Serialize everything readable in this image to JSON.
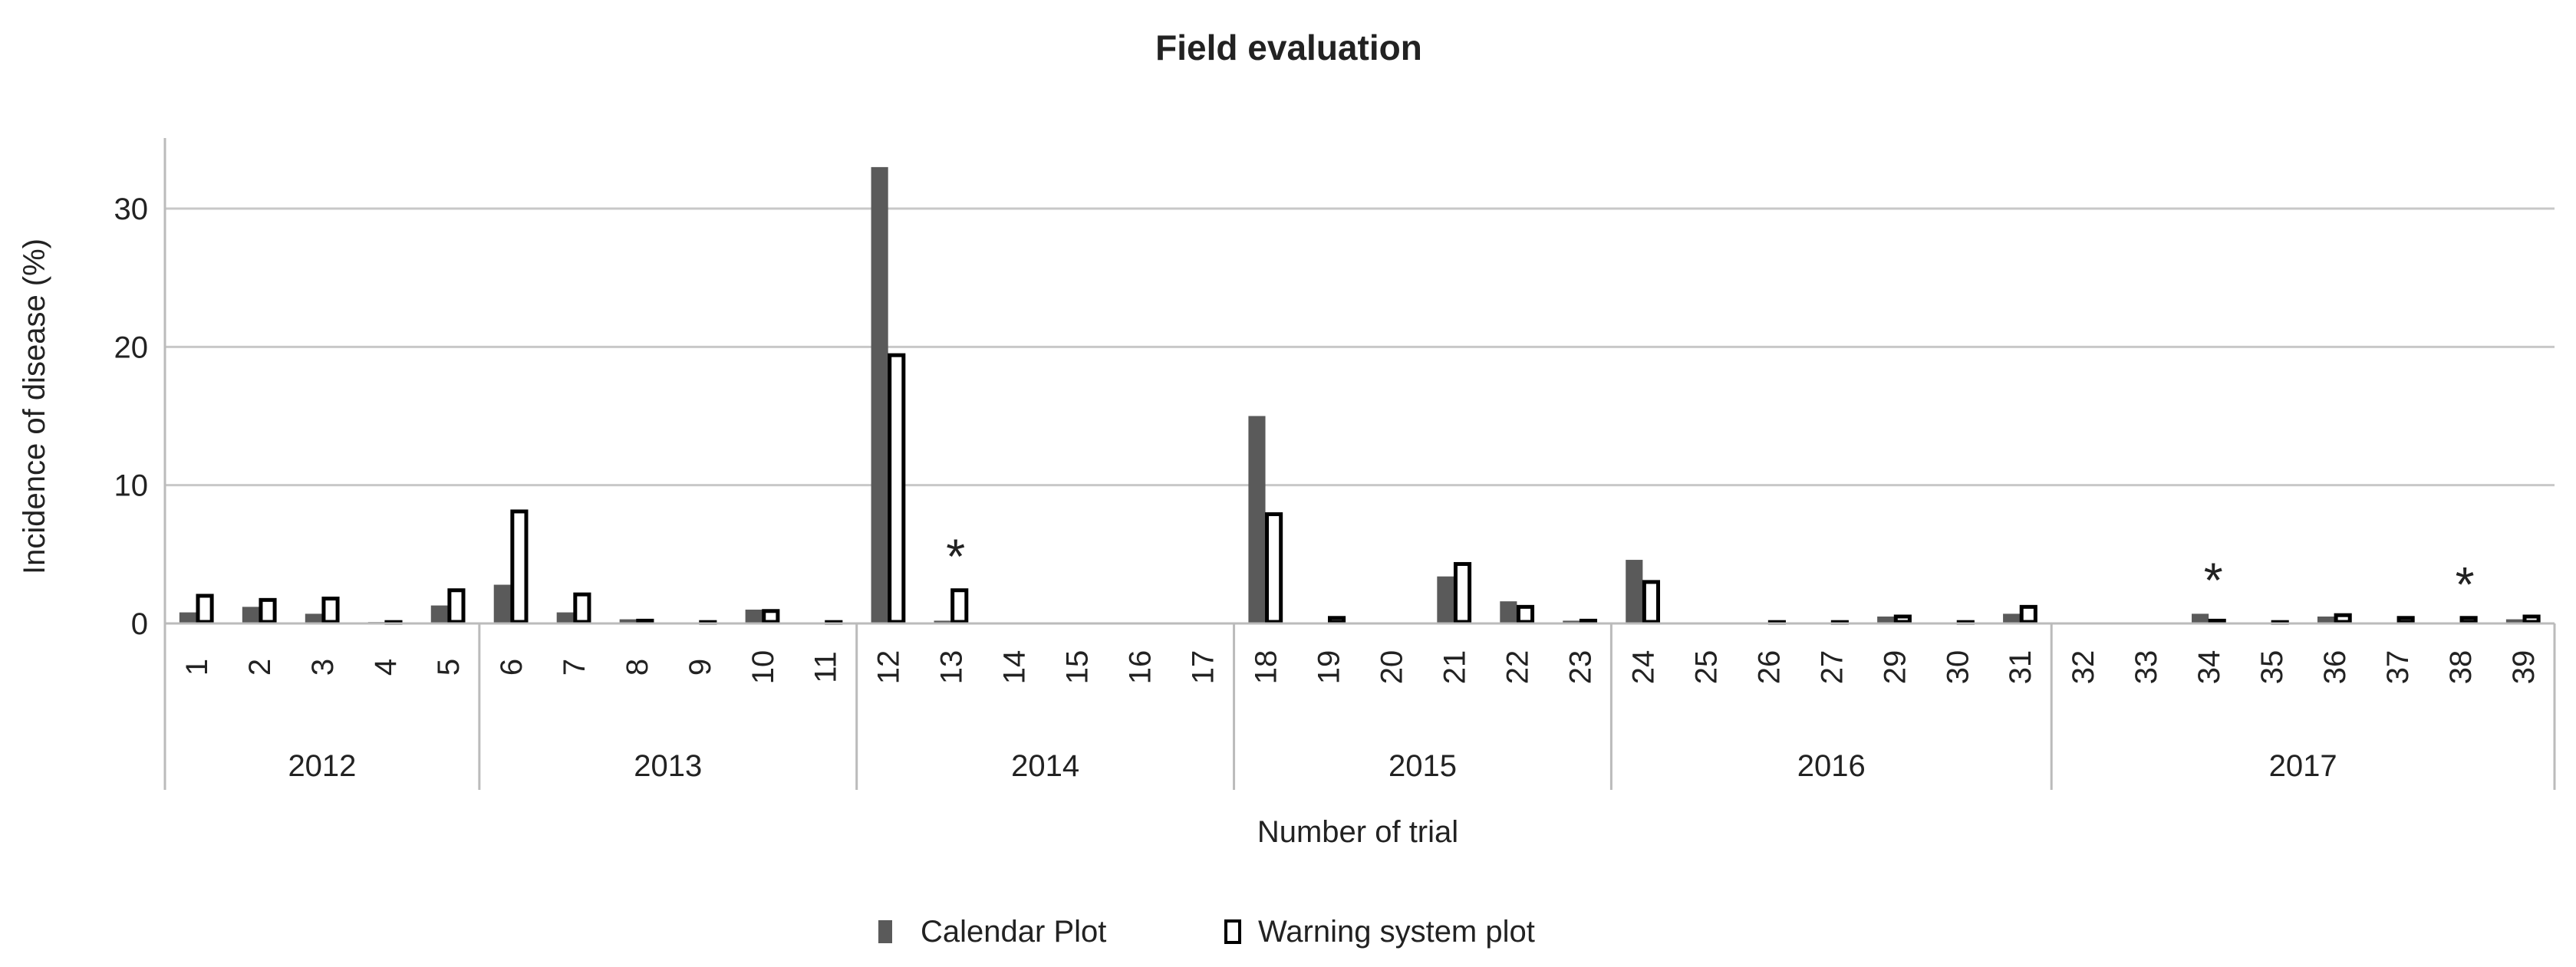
{
  "chart_data": {
    "type": "bar",
    "title": "Field evaluation",
    "xlabel": "Number of trial",
    "ylabel": "Incidence of disease (%)",
    "ylim": [
      0,
      35
    ],
    "yticks": [
      0,
      10,
      20,
      30
    ],
    "grid": true,
    "legend_placement": "bottom",
    "categories": [
      "1",
      "2",
      "3",
      "4",
      "5",
      "6",
      "7",
      "8",
      "9",
      "10",
      "11",
      "12",
      "13",
      "14",
      "15",
      "16",
      "17",
      "18",
      "19",
      "20",
      "21",
      "22",
      "23",
      "24",
      "25",
      "26",
      "27",
      "29",
      "30",
      "31",
      "32",
      "33",
      "34",
      "35",
      "36",
      "37",
      "38",
      "39"
    ],
    "groups": [
      {
        "label": "2012",
        "count": 5
      },
      {
        "label": "2013",
        "count": 6
      },
      {
        "label": "2014",
        "count": 6
      },
      {
        "label": "2015",
        "count": 6
      },
      {
        "label": "2016",
        "count": 7
      },
      {
        "label": "2017",
        "count": 8
      }
    ],
    "series": [
      {
        "name": "Calendar Plot",
        "color": "#5a5a5a",
        "values": [
          0.8,
          1.2,
          0.7,
          0.1,
          1.3,
          2.8,
          0.8,
          0.3,
          0,
          1.0,
          0,
          33,
          0.2,
          0,
          0,
          0,
          0,
          15,
          0,
          0,
          3.4,
          1.6,
          0.2,
          4.6,
          0,
          0,
          0,
          0.5,
          0,
          0.7,
          0,
          0,
          0.7,
          0,
          0.5,
          0,
          0,
          0.3
        ]
      },
      {
        "name": "Warning system plot",
        "color": "#ffffff",
        "values": [
          2.0,
          1.7,
          1.8,
          0.1,
          2.4,
          8.1,
          2.1,
          0.2,
          0.1,
          0.9,
          0.1,
          19.4,
          2.4,
          0,
          0,
          0,
          0,
          7.9,
          0.4,
          0,
          4.3,
          1.2,
          0.2,
          3.0,
          0,
          0.1,
          0.1,
          0.5,
          0.1,
          1.2,
          0,
          0,
          0.2,
          0.1,
          0.6,
          0.4,
          0.4,
          0.5
        ]
      }
    ],
    "annotations": [
      {
        "category": "13",
        "text": "*"
      },
      {
        "category": "34",
        "text": "*"
      },
      {
        "category": "38",
        "text": "*"
      }
    ]
  }
}
